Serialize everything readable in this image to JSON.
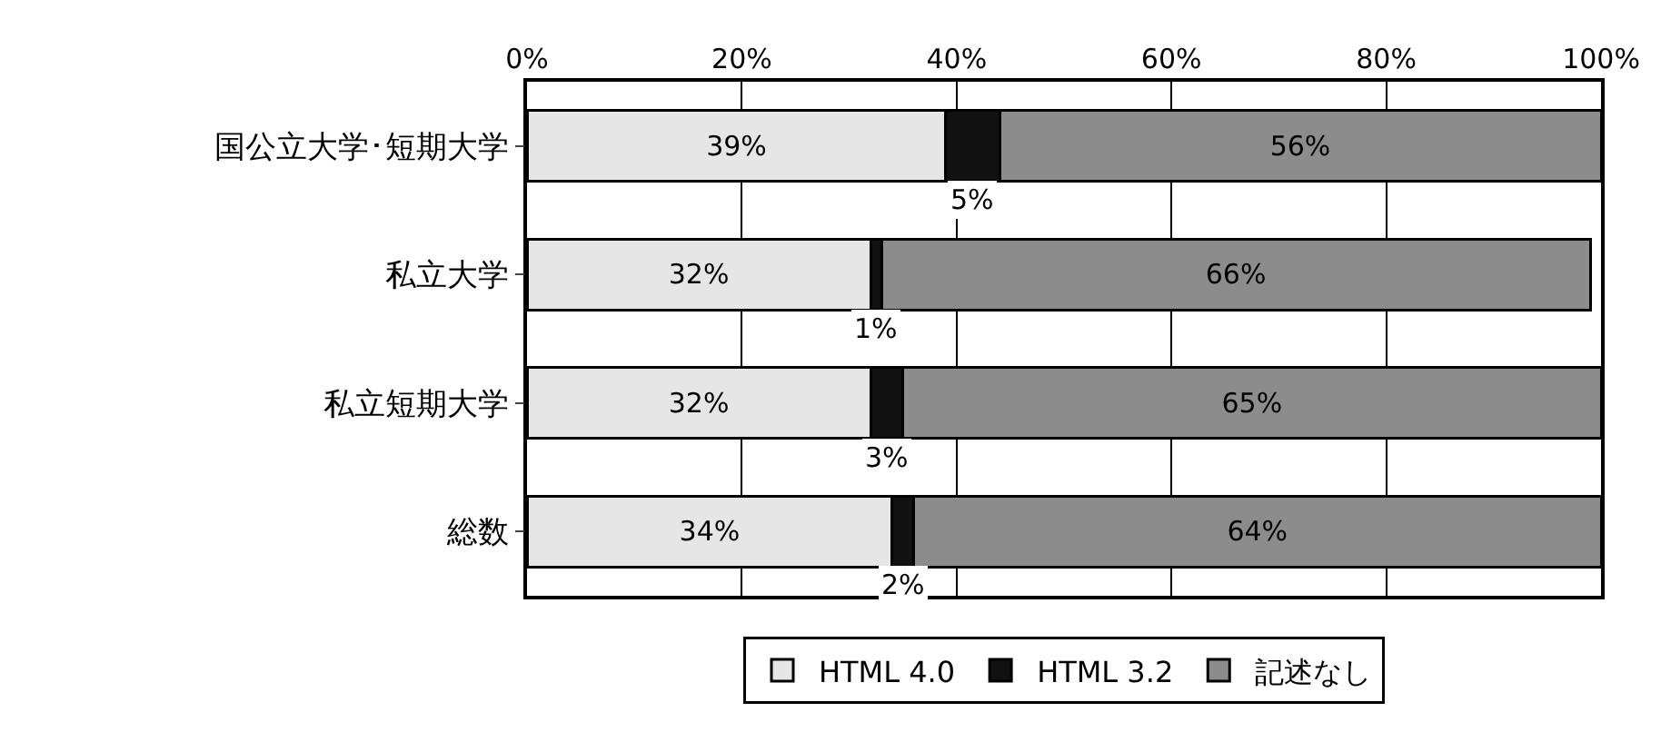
{
  "chart_data": {
    "type": "bar",
    "orientation": "horizontal",
    "stacked": true,
    "categories": [
      "国公立大学･短期大学",
      "私立大学",
      "私立短期大学",
      "総数"
    ],
    "series": [
      {
        "name": "HTML 4.0",
        "color": "#e6e6e6",
        "values": [
          39,
          32,
          32,
          34
        ],
        "value_labels": [
          "39%",
          "32%",
          "32%",
          "34%"
        ]
      },
      {
        "name": "HTML 3.2",
        "color": "#111111",
        "values": [
          5,
          1,
          3,
          2
        ],
        "value_labels": [
          "5%",
          "1%",
          "3%",
          "2%"
        ]
      },
      {
        "name": "記述なし",
        "color": "#8c8c8c",
        "values": [
          56,
          66,
          65,
          64
        ],
        "value_labels": [
          "56%",
          "66%",
          "65%",
          "64%"
        ]
      }
    ],
    "xlim": [
      0,
      100
    ],
    "xticks": [
      {
        "value": 0,
        "label": "0%"
      },
      {
        "value": 20,
        "label": "20%"
      },
      {
        "value": 40,
        "label": "40%"
      },
      {
        "value": 60,
        "label": "60%"
      },
      {
        "value": 80,
        "label": "80%"
      },
      {
        "value": 100,
        "label": "100%"
      }
    ],
    "grid": "x",
    "legend": "bottom"
  }
}
